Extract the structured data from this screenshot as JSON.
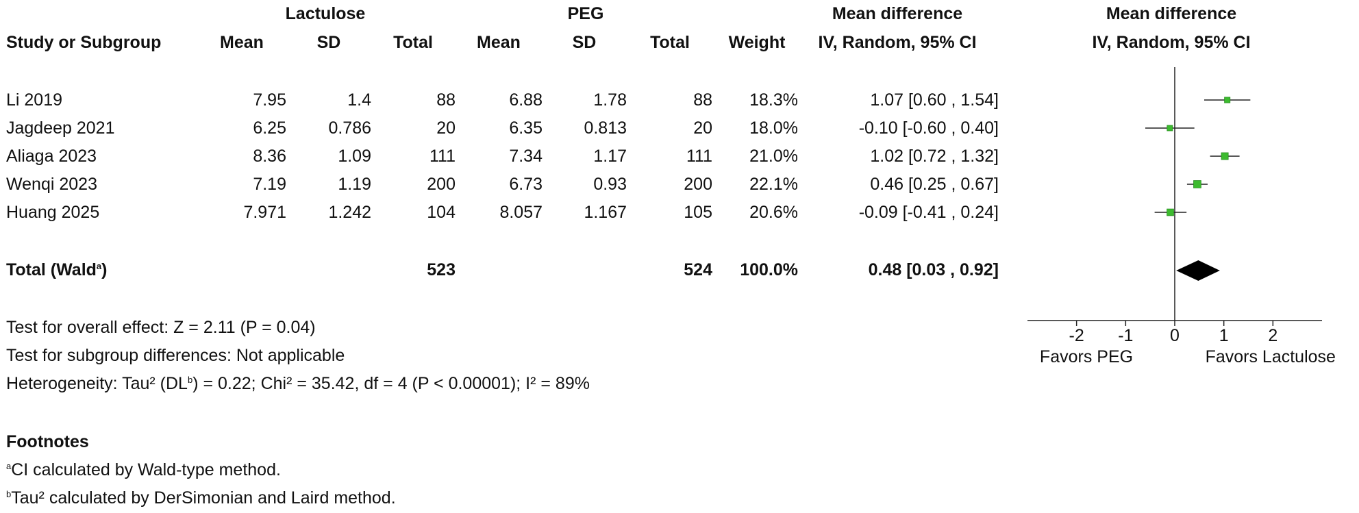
{
  "header": {
    "group1": "Lactulose",
    "group2": "PEG",
    "md_title": "Mean difference",
    "md_method": "IV, Random, 95% CI",
    "plot_title": "Mean difference",
    "plot_method": "IV, Random, 95% CI",
    "col_study": "Study or Subgroup",
    "col_mean1": "Mean",
    "col_sd1": "SD",
    "col_total1": "Total",
    "col_mean2": "Mean",
    "col_sd2": "SD",
    "col_total2": "Total",
    "col_weight": "Weight"
  },
  "rows": [
    {
      "study": "Li 2019",
      "mean1": "7.95",
      "sd1": "1.4",
      "total1": "88",
      "mean2": "6.88",
      "sd2": "1.78",
      "total2": "88",
      "weight": "18.3%",
      "ci": "1.07 [0.60 , 1.54]"
    },
    {
      "study": "Jagdeep 2021",
      "mean1": "6.25",
      "sd1": "0.786",
      "total1": "20",
      "mean2": "6.35",
      "sd2": "0.813",
      "total2": "20",
      "weight": "18.0%",
      "ci": "-0.10 [-0.60 , 0.40]"
    },
    {
      "study": "Aliaga 2023",
      "mean1": "8.36",
      "sd1": "1.09",
      "total1": "111",
      "mean2": "7.34",
      "sd2": "1.17",
      "total2": "111",
      "weight": "21.0%",
      "ci": "1.02 [0.72 , 1.32]"
    },
    {
      "study": "Wenqi 2023",
      "mean1": "7.19",
      "sd1": "1.19",
      "total1": "200",
      "mean2": "6.73",
      "sd2": "0.93",
      "total2": "200",
      "weight": "22.1%",
      "ci": "0.46 [0.25 , 0.67]"
    },
    {
      "study": "Huang 2025",
      "mean1": "7.971",
      "sd1": "1.242",
      "total1": "104",
      "mean2": "8.057",
      "sd2": "1.167",
      "total2": "105",
      "weight": "20.6%",
      "ci": "-0.09 [-0.41 , 0.24]"
    }
  ],
  "total": {
    "label": "Total (Wald",
    "label_sup": "a",
    "label_end": ")",
    "total1": "523",
    "total2": "524",
    "weight": "100.0%",
    "ci": "0.48 [0.03 , 0.92]"
  },
  "tests": {
    "overall": "Test for overall effect: Z = 2.11 (P = 0.04)",
    "subgroup": "Test for subgroup differences: Not applicable",
    "het_pre": "Heterogeneity: Tau² (DL",
    "het_sup": "b",
    "het_post": ") = 0.22; Chi² = 35.42, df = 4 (P < 0.00001); I² = 89%"
  },
  "footnotes": {
    "title": "Footnotes",
    "a_mark": "a",
    "a_text": "CI calculated by Wald-type method.",
    "b_mark": "b",
    "b_text": "Tau² calculated by DerSimonian and Laird method."
  },
  "chart_data": {
    "type": "forest",
    "xlim": [
      -3,
      3
    ],
    "ticks": [
      -2,
      -1,
      0,
      1,
      2
    ],
    "tick_labels": [
      "-2",
      "-1",
      "0",
      "1",
      "2"
    ],
    "left_label": "Favors PEG",
    "right_label": "Favors Lactulose",
    "point_color": "#3dbb2f",
    "studies": [
      {
        "name": "Li 2019",
        "est": 1.07,
        "lo": 0.6,
        "hi": 1.54,
        "weight": 18.3
      },
      {
        "name": "Jagdeep 2021",
        "est": -0.1,
        "lo": -0.6,
        "hi": 0.4,
        "weight": 18.0
      },
      {
        "name": "Aliaga 2023",
        "est": 1.02,
        "lo": 0.72,
        "hi": 1.32,
        "weight": 21.0
      },
      {
        "name": "Wenqi 2023",
        "est": 0.46,
        "lo": 0.25,
        "hi": 0.67,
        "weight": 22.1
      },
      {
        "name": "Huang 2025",
        "est": -0.09,
        "lo": -0.41,
        "hi": 0.24,
        "weight": 20.6
      }
    ],
    "pooled": {
      "est": 0.48,
      "lo": 0.03,
      "hi": 0.92
    }
  }
}
